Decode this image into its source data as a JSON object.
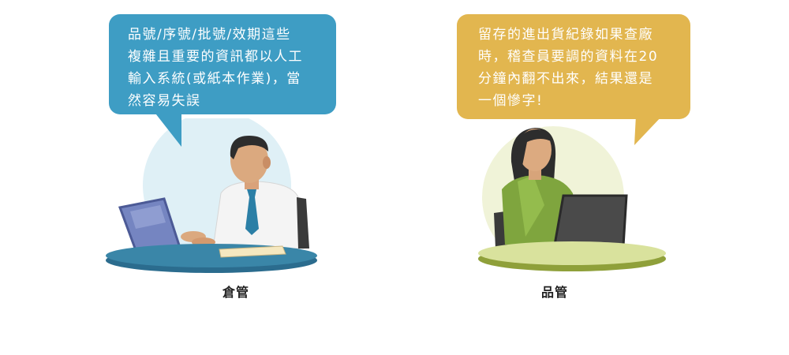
{
  "left_panel": {
    "bubble_lines": [
      "品號/序號/批號/效期這些",
      "複雜且重要的資訊都以人工",
      "輸入系統(或紙本作業)，當",
      "然容易失誤"
    ],
    "caption": "倉管",
    "bubble_color": "#3e9dc4"
  },
  "right_panel": {
    "bubble_lines": [
      "留存的進出貨紀錄如果查廠",
      "時，稽查員要調的資料在20",
      "分鐘內翻不出來，結果還是",
      "一個慘字!"
    ],
    "caption": "品管",
    "bubble_color": "#e2b64f"
  }
}
